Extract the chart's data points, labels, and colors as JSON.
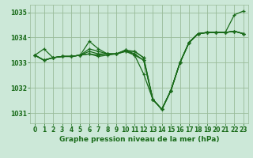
{
  "bg_color": "#cce8d8",
  "grid_color": "#99bb99",
  "line_color": "#1a6b1a",
  "xlabel": "Graphe pression niveau de la mer (hPa)",
  "xlim": [
    -0.5,
    23.5
  ],
  "ylim": [
    1030.6,
    1035.3
  ],
  "yticks": [
    1031,
    1032,
    1033,
    1034,
    1035
  ],
  "xticks": [
    0,
    1,
    2,
    3,
    4,
    5,
    6,
    7,
    8,
    9,
    10,
    11,
    12,
    13,
    14,
    15,
    16,
    17,
    18,
    19,
    20,
    21,
    22,
    23
  ],
  "series": [
    [
      1033.3,
      1033.55,
      1033.2,
      1033.25,
      1033.25,
      1033.3,
      1033.85,
      1033.55,
      1033.35,
      1033.35,
      1033.45,
      1033.45,
      1033.2,
      1031.55,
      1031.15,
      1031.9,
      1033.0,
      1033.8,
      1034.15,
      1034.2,
      1034.2,
      1034.2,
      1034.9,
      1035.05
    ],
    [
      1033.3,
      1033.1,
      1033.2,
      1033.25,
      1033.25,
      1033.3,
      1033.55,
      1033.45,
      1033.35,
      1033.35,
      1033.5,
      1033.45,
      1033.2,
      1031.55,
      1031.15,
      1031.9,
      1033.0,
      1033.8,
      1034.15,
      1034.2,
      1034.2,
      1034.2,
      1034.25,
      1034.15
    ],
    [
      1033.3,
      1033.1,
      1033.2,
      1033.25,
      1033.25,
      1033.3,
      1033.45,
      1033.35,
      1033.35,
      1033.35,
      1033.5,
      1033.35,
      1033.1,
      1031.55,
      1031.15,
      1031.9,
      1033.0,
      1033.8,
      1034.15,
      1034.2,
      1034.2,
      1034.2,
      1034.25,
      1034.15
    ],
    [
      1033.3,
      1033.1,
      1033.2,
      1033.25,
      1033.25,
      1033.3,
      1033.35,
      1033.3,
      1033.35,
      1033.35,
      1033.5,
      1033.3,
      1033.1,
      1031.55,
      1031.15,
      1031.9,
      1033.0,
      1033.8,
      1034.15,
      1034.2,
      1034.2,
      1034.2,
      1034.25,
      1034.15
    ],
    [
      1033.3,
      1033.1,
      1033.2,
      1033.25,
      1033.25,
      1033.3,
      1033.35,
      1033.25,
      1033.3,
      1033.35,
      1033.45,
      1033.3,
      1032.55,
      1031.55,
      1031.15,
      1031.9,
      1033.0,
      1033.8,
      1034.15,
      1034.2,
      1034.2,
      1034.2,
      1034.25,
      1034.15
    ]
  ]
}
